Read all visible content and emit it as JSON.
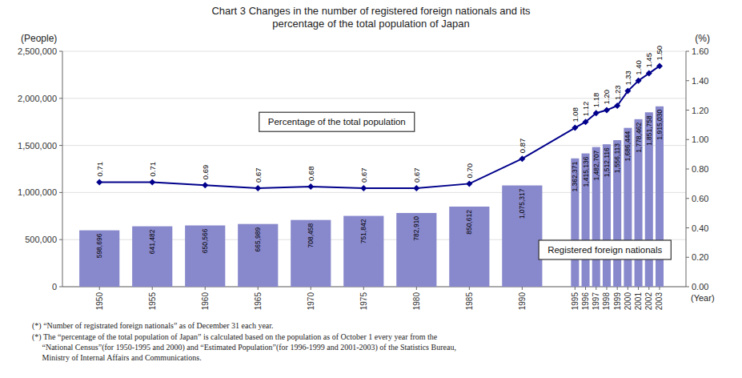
{
  "chart_data": {
    "type": "bar",
    "title": "Chart 3 Changes in the number of registered foreign nationals and its\npercentage of the total population of Japan",
    "xlabel": "(Year)",
    "ylabel": "(People)",
    "y2label": "(%)",
    "x": [
      1950,
      1955,
      1960,
      1965,
      1970,
      1975,
      1980,
      1985,
      1990,
      1995,
      1996,
      1997,
      1998,
      1999,
      2000,
      2001,
      2002,
      2003
    ],
    "xlim": [
      1946.5,
      2005.5
    ],
    "xticks": [
      1950,
      1955,
      1960,
      1965,
      1970,
      1975,
      1980,
      1985,
      1990,
      1995,
      1996,
      1997,
      1998,
      1999,
      2000,
      2001,
      2002,
      2003
    ],
    "ylim": [
      0,
      2500000
    ],
    "yticks": [
      0,
      {
        "value": 500000,
        "label": "500,000"
      },
      {
        "value": 1000000,
        "label": "1,000,000"
      },
      {
        "value": 1500000,
        "label": "1,500,000"
      },
      {
        "value": 2000000,
        "label": "2,000,000"
      },
      {
        "value": 2500000,
        "label": "2,500,000"
      }
    ],
    "y2lim": [
      0.0,
      1.6
    ],
    "y2ticks": [
      {
        "value": 0.0,
        "label": "0.00"
      },
      {
        "value": 0.2,
        "label": "0.20"
      },
      {
        "value": 0.4,
        "label": "0.40"
      },
      {
        "value": 0.6,
        "label": "0.60"
      },
      {
        "value": 0.8,
        "label": "0.80"
      },
      {
        "value": 1.0,
        "label": "1.00"
      },
      {
        "value": 1.2,
        "label": "1.20"
      },
      {
        "value": 1.4,
        "label": "1.40"
      },
      {
        "value": 1.6,
        "label": "1.60"
      }
    ],
    "grid": true,
    "data_labels": true,
    "series": [
      {
        "name": "Registered foreign nationals",
        "type": "bar",
        "color": "#8888cc",
        "values": [
          598696,
          641482,
          650566,
          665989,
          708458,
          751842,
          782910,
          850612,
          1075317,
          1362371,
          1415136,
          1482707,
          1512116,
          1556113,
          1686444,
          1778462,
          1851758,
          1915030
        ],
        "value_labels": [
          "598,696",
          "641,482",
          "650,566",
          "665,989",
          "708,458",
          "751,842",
          "782,910",
          "850,612",
          "1,075,317",
          "1,362,371",
          "1,415,136",
          "1,482,707",
          "1,512,116",
          "1,556,113",
          "1,686,444",
          "1,778,462",
          "1,851,758",
          "1,915,030"
        ]
      },
      {
        "name": "Percentage of the total population",
        "type": "line",
        "axis": "y2",
        "color": "#00008B",
        "marker": "diamond",
        "values": [
          0.71,
          0.71,
          0.69,
          0.67,
          0.68,
          0.67,
          0.67,
          0.7,
          0.87,
          1.08,
          1.12,
          1.18,
          1.2,
          1.23,
          1.33,
          1.4,
          1.45,
          1.5
        ],
        "value_labels": [
          "0.71",
          "0.71",
          "0.69",
          "0.67",
          "0.68",
          "0.67",
          "0.67",
          "0.70",
          "0.87",
          "1.08",
          "1.12",
          "1.18",
          "1.20",
          "1.23",
          "1.33",
          "1.40",
          "1.45",
          "1.50"
        ]
      }
    ],
    "footnotes": [
      "(*) “Number of registrated foreign nationals” as of December 31 each year.",
      "(*) The “percentage of the total population of Japan” is calculated based on the population as of October 1 every year from the\n     “National Census”(for 1950-1995 and 2000) and “Estimated Population”(for 1996-1999 and 2001-2003) of the Statistics Bureau,\n     Ministry of Internal Affairs and Communications."
    ]
  }
}
